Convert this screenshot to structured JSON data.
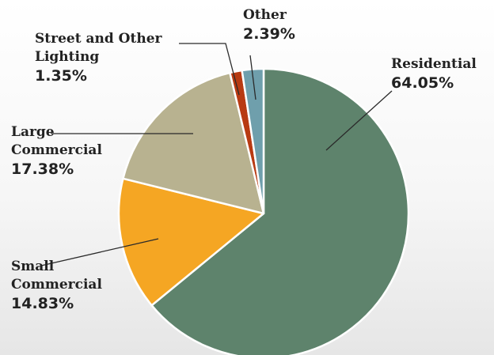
{
  "chart_data": {
    "type": "pie",
    "title": "",
    "slices": [
      {
        "label": "Residential",
        "value": 64.05,
        "display": "64.05%",
        "color": "#5e836c"
      },
      {
        "label": "Small Commercial",
        "value": 14.83,
        "display": "14.83%",
        "color": "#f5a623"
      },
      {
        "label": "Large Commercial",
        "value": 17.38,
        "display": "17.38%",
        "color": "#b8b290"
      },
      {
        "label": "Street and Other Lighting",
        "value": 1.35,
        "display": "1.35%",
        "color": "#b83a12"
      },
      {
        "label": "Other",
        "value": 2.39,
        "display": "2.39%",
        "color": "#6f9fac"
      }
    ]
  },
  "labels": {
    "residential": {
      "line1": "Residential",
      "pct": "64.05%"
    },
    "small_commercial": {
      "line1": "Small",
      "line2": "Commercial",
      "pct": "14.83%"
    },
    "large_commercial": {
      "line1": "Large",
      "line2": "Commercial",
      "pct": "17.38%"
    },
    "lighting": {
      "line1": "Street and Other",
      "line2": "Lighting",
      "pct": "1.35%"
    },
    "other": {
      "line1": "Other",
      "pct": "2.39%"
    }
  }
}
